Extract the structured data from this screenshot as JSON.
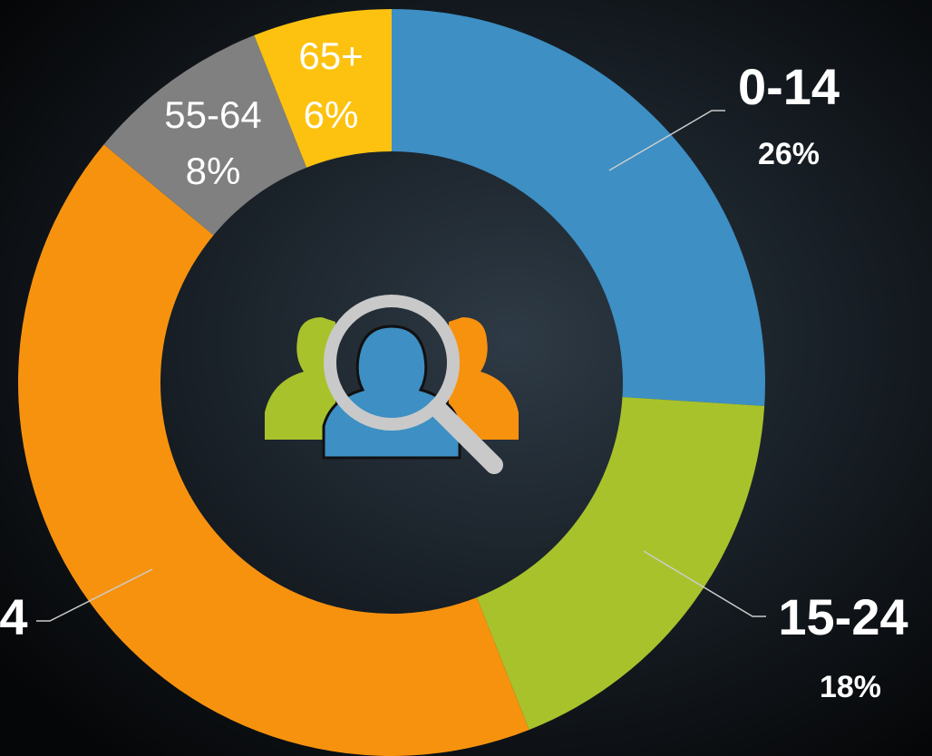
{
  "chart_data": {
    "type": "donut",
    "categories": [
      "0-14",
      "15-24",
      "4",
      "55-64",
      "65+"
    ],
    "values": [
      26,
      18,
      42,
      8,
      6
    ],
    "value_labels": [
      "26%",
      "18%",
      null,
      "8%",
      "6%"
    ],
    "colors": [
      "#3d8fc4",
      "#a8c22c",
      "#f7920f",
      "#808080",
      "#fcc20f"
    ]
  }
}
